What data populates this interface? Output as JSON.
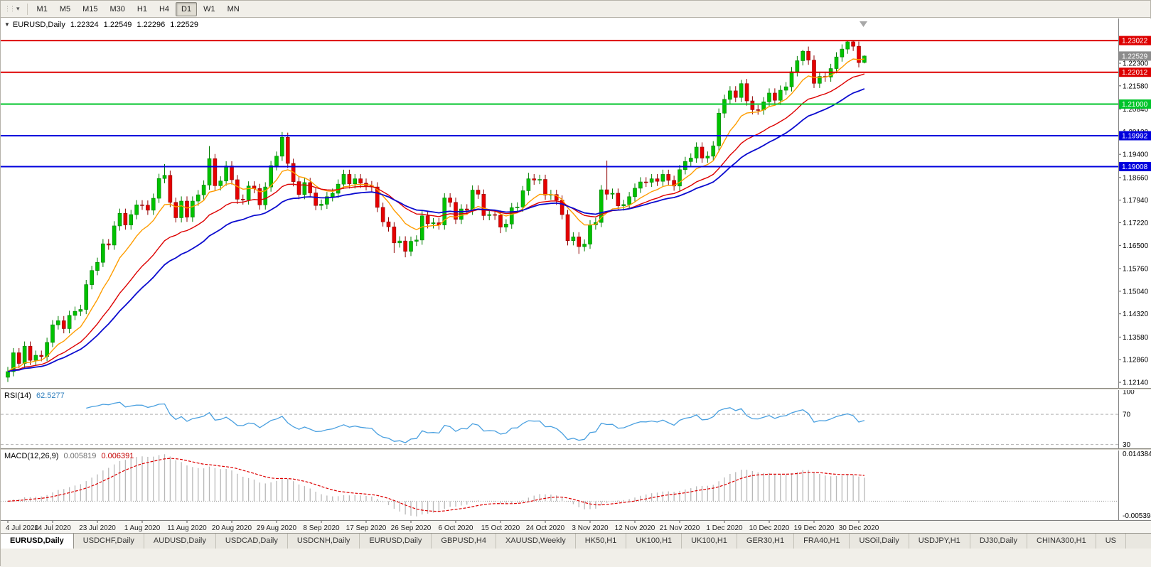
{
  "icons": {
    "toolbar_grip": "⋮⋮",
    "toolbar_dropdown": "▾",
    "collapse_arrow": "▼"
  },
  "toolbar": {
    "timeframes": [
      "M1",
      "M5",
      "M15",
      "M30",
      "H1",
      "H4",
      "D1",
      "W1",
      "MN"
    ],
    "active_timeframe": "D1"
  },
  "header": {
    "symbol": "EURUSD,Daily",
    "open": "1.22324",
    "high": "1.22549",
    "low": "1.22296",
    "close": "1.22529"
  },
  "indicators": {
    "rsi_label": {
      "name": "RSI(14)",
      "value": "62.5277"
    },
    "macd_label": {
      "name": "MACD(12,26,9)",
      "v1": "0.005819",
      "v2": "0.006391"
    }
  },
  "window_tabs": [
    "EURUSD,Daily",
    "USDCHF,Daily",
    "AUDUSD,Daily",
    "USDCAD,Daily",
    "USDCNH,Daily",
    "EURUSD,Daily",
    "GBPUSD,H4",
    "XAUUSD,Weekly",
    "HK50,H1",
    "UK100,H1",
    "UK100,H1",
    "GER30,H1",
    "FRA40,H1",
    "USOil,Daily",
    "USDJPY,H1",
    "DJ30,Daily",
    "CHINA300,H1",
    "US"
  ],
  "active_tab_index": 0,
  "chart_data": {
    "type": "candlestick",
    "title": "EURUSD,Daily",
    "x_labels": [
      "4 Jul 2020",
      "14 Jul 2020",
      "23 Jul 2020",
      "1 Aug 2020",
      "11 Aug 2020",
      "20 Aug 2020",
      "29 Aug 2020",
      "8 Sep 2020",
      "17 Sep 2020",
      "26 Sep 2020",
      "6 Oct 2020",
      "15 Oct 2020",
      "24 Oct 2020",
      "3 Nov 2020",
      "12 Nov 2020",
      "21 Nov 2020",
      "1 Dec 2020",
      "10 Dec 2020",
      "19 Dec 2020",
      "30 Dec 2020"
    ],
    "bars_per_x_label": 8,
    "y_ticks": [
      "1.22300",
      "1.21580",
      "1.20840",
      "1.20120",
      "1.19400",
      "1.18660",
      "1.17940",
      "1.17220",
      "1.16500",
      "1.15760",
      "1.15040",
      "1.14320",
      "1.13580",
      "1.12860",
      "1.12140"
    ],
    "y_view": {
      "max": 1.2368,
      "min": 1.1196
    },
    "current_price": "1.22529",
    "up_color": "#00c200",
    "up_border": "#007d00",
    "down_color": "#e60000",
    "down_border": "#8f0000",
    "current_price_box": "#8c8c8c",
    "hlines": [
      {
        "price": 1.23022,
        "label": "1.23022",
        "color": "#dd0000"
      },
      {
        "price": 1.22012,
        "label": "1.22012",
        "color": "#dd0000"
      },
      {
        "price": 1.21,
        "label": "1.21000",
        "color": "#00c42a"
      },
      {
        "price": 1.19992,
        "label": "1.19992",
        "color": "#0000dd"
      },
      {
        "price": 1.19008,
        "label": "1.19008",
        "color": "#0000dd"
      }
    ],
    "overlays": [
      {
        "name": "ma-fast",
        "type": "ema",
        "period": 9,
        "color": "#ff9d00",
        "width": 1.4
      },
      {
        "name": "ma-medium",
        "type": "ema",
        "period": 20,
        "color": "#dd0000",
        "width": 1.4
      },
      {
        "name": "ma-slow",
        "type": "ema",
        "period": 30,
        "color": "#0b0bcf",
        "width": 1.8
      }
    ],
    "rsi": {
      "period": 14,
      "levels": [
        100,
        70,
        30
      ],
      "axis_labels": [
        "100",
        "70",
        "30"
      ],
      "color": "#4aa0e0",
      "scale_max": 102,
      "scale_min": 25
    },
    "macd": {
      "fast": 12,
      "slow": 26,
      "signal": 9,
      "hist_color": "#b8b8b8",
      "signal_color": "#dd0000",
      "axis_top_label": "0.014384",
      "axis_bottom_label": "-0.005394"
    },
    "ohlc": [
      [
        1.123,
        1.1263,
        1.1215,
        1.1248
      ],
      [
        1.1248,
        1.1323,
        1.1233,
        1.1308
      ],
      [
        1.1308,
        1.1323,
        1.1259,
        1.1274
      ],
      [
        1.1274,
        1.1344,
        1.1259,
        1.1329
      ],
      [
        1.1329,
        1.1344,
        1.1269,
        1.1284
      ],
      [
        1.1284,
        1.1315,
        1.1269,
        1.13
      ],
      [
        1.13,
        1.1315,
        1.1281,
        1.1296
      ],
      [
        1.1296,
        1.1356,
        1.1281,
        1.1341
      ],
      [
        1.1341,
        1.1412,
        1.1326,
        1.1397
      ],
      [
        1.1397,
        1.1425,
        1.1382,
        1.141
      ],
      [
        1.141,
        1.1425,
        1.137,
        1.1385
      ],
      [
        1.1385,
        1.1442,
        1.137,
        1.1427
      ],
      [
        1.1427,
        1.1455,
        1.1412,
        1.144
      ],
      [
        1.144,
        1.1461,
        1.1425,
        1.1446
      ],
      [
        1.1446,
        1.154,
        1.1431,
        1.1525
      ],
      [
        1.1525,
        1.1585,
        1.151,
        1.157
      ],
      [
        1.157,
        1.1611,
        1.1555,
        1.1596
      ],
      [
        1.1596,
        1.167,
        1.1581,
        1.1655
      ],
      [
        1.1655,
        1.167,
        1.1636,
        1.1651
      ],
      [
        1.1651,
        1.1727,
        1.1636,
        1.1712
      ],
      [
        1.1712,
        1.1767,
        1.1697,
        1.1752
      ],
      [
        1.1752,
        1.1767,
        1.17,
        1.1715
      ],
      [
        1.1715,
        1.1763,
        1.17,
        1.1748
      ],
      [
        1.1748,
        1.1794,
        1.1733,
        1.1779
      ],
      [
        1.1779,
        1.1794,
        1.1763,
        1.1778
      ],
      [
        1.1778,
        1.1793,
        1.1747,
        1.1762
      ],
      [
        1.1762,
        1.1815,
        1.1747,
        1.18
      ],
      [
        1.18,
        1.1878,
        1.1785,
        1.1863
      ],
      [
        1.1863,
        1.1909,
        1.1848,
        1.1873
      ],
      [
        1.1873,
        1.1888,
        1.1772,
        1.1787
      ],
      [
        1.1787,
        1.1802,
        1.1723,
        1.1738
      ],
      [
        1.1738,
        1.1806,
        1.1723,
        1.1791
      ],
      [
        1.1791,
        1.1806,
        1.1725,
        1.174
      ],
      [
        1.174,
        1.1806,
        1.1725,
        1.1791
      ],
      [
        1.1791,
        1.1826,
        1.1776,
        1.1811
      ],
      [
        1.1811,
        1.1857,
        1.1796,
        1.1842
      ],
      [
        1.1842,
        1.1966,
        1.1827,
        1.1926
      ],
      [
        1.1926,
        1.1941,
        1.1825,
        1.184
      ],
      [
        1.184,
        1.187,
        1.1825,
        1.1855
      ],
      [
        1.1855,
        1.1918,
        1.184,
        1.1903
      ],
      [
        1.1903,
        1.1918,
        1.1844,
        1.1859
      ],
      [
        1.1859,
        1.1874,
        1.1782,
        1.1797
      ],
      [
        1.1797,
        1.1812,
        1.178,
        1.1795
      ],
      [
        1.1795,
        1.1854,
        1.178,
        1.1839
      ],
      [
        1.1839,
        1.1854,
        1.1816,
        1.1831
      ],
      [
        1.1831,
        1.1846,
        1.1764,
        1.1779
      ],
      [
        1.1779,
        1.1851,
        1.1764,
        1.1836
      ],
      [
        1.1836,
        1.1919,
        1.1821,
        1.1904
      ],
      [
        1.1904,
        1.1949,
        1.1889,
        1.1934
      ],
      [
        1.1934,
        1.2011,
        1.1919,
        1.1994
      ],
      [
        1.1994,
        1.2009,
        1.1896,
        1.1911
      ],
      [
        1.1911,
        1.1926,
        1.1838,
        1.1853
      ],
      [
        1.1853,
        1.1868,
        1.1797,
        1.1812
      ],
      [
        1.1812,
        1.1865,
        1.1797,
        1.185
      ],
      [
        1.185,
        1.1865,
        1.1802,
        1.1817
      ],
      [
        1.1817,
        1.1832,
        1.1762,
        1.1777
      ],
      [
        1.1777,
        1.1796,
        1.1762,
        1.1781
      ],
      [
        1.1781,
        1.182,
        1.1766,
        1.1805
      ],
      [
        1.1805,
        1.1831,
        1.179,
        1.1816
      ],
      [
        1.1816,
        1.186,
        1.1801,
        1.1845
      ],
      [
        1.1845,
        1.1891,
        1.183,
        1.1876
      ],
      [
        1.1876,
        1.1891,
        1.1831,
        1.1846
      ],
      [
        1.1846,
        1.1877,
        1.1831,
        1.1862
      ],
      [
        1.1862,
        1.1877,
        1.1833,
        1.1848
      ],
      [
        1.1848,
        1.1863,
        1.1825,
        1.184
      ],
      [
        1.184,
        1.1855,
        1.1821,
        1.1836
      ],
      [
        1.1836,
        1.1851,
        1.1756,
        1.1771
      ],
      [
        1.1771,
        1.1786,
        1.171,
        1.1725
      ],
      [
        1.1725,
        1.174,
        1.1694,
        1.1709
      ],
      [
        1.1709,
        1.1724,
        1.1626,
        1.1658
      ],
      [
        1.1658,
        1.1679,
        1.1643,
        1.1664
      ],
      [
        1.1664,
        1.1679,
        1.1612,
        1.1631
      ],
      [
        1.1631,
        1.1678,
        1.1616,
        1.1663
      ],
      [
        1.1663,
        1.1682,
        1.1648,
        1.1667
      ],
      [
        1.1667,
        1.1759,
        1.1652,
        1.1744
      ],
      [
        1.1744,
        1.1759,
        1.1704,
        1.1719
      ],
      [
        1.1719,
        1.1737,
        1.1704,
        1.1722
      ],
      [
        1.1722,
        1.1737,
        1.17,
        1.1715
      ],
      [
        1.1715,
        1.1816,
        1.17,
        1.1801
      ],
      [
        1.1801,
        1.1816,
        1.1772,
        1.1787
      ],
      [
        1.1787,
        1.1802,
        1.1718,
        1.1733
      ],
      [
        1.1733,
        1.1781,
        1.1718,
        1.1766
      ],
      [
        1.1766,
        1.1781,
        1.1747,
        1.1762
      ],
      [
        1.1762,
        1.1841,
        1.1747,
        1.1826
      ],
      [
        1.1826,
        1.1841,
        1.1798,
        1.1813
      ],
      [
        1.1813,
        1.1828,
        1.173,
        1.1745
      ],
      [
        1.1745,
        1.1763,
        1.173,
        1.1748
      ],
      [
        1.1748,
        1.1763,
        1.1731,
        1.1746
      ],
      [
        1.1746,
        1.1761,
        1.1689,
        1.1708
      ],
      [
        1.1708,
        1.1733,
        1.1693,
        1.1718
      ],
      [
        1.1718,
        1.1785,
        1.1703,
        1.177
      ],
      [
        1.177,
        1.1787,
        1.1757,
        1.1772
      ],
      [
        1.1772,
        1.1839,
        1.1757,
        1.1824
      ],
      [
        1.1824,
        1.1881,
        1.1809,
        1.1862
      ],
      [
        1.1862,
        1.1877,
        1.1843,
        1.1858
      ],
      [
        1.1858,
        1.1875,
        1.1845,
        1.186
      ],
      [
        1.186,
        1.1875,
        1.1795,
        1.181
      ],
      [
        1.181,
        1.1827,
        1.1795,
        1.1812
      ],
      [
        1.1812,
        1.1827,
        1.1779,
        1.1794
      ],
      [
        1.1794,
        1.1809,
        1.1733,
        1.1748
      ],
      [
        1.1748,
        1.1763,
        1.165,
        1.1665
      ],
      [
        1.1665,
        1.1692,
        1.165,
        1.1677
      ],
      [
        1.1677,
        1.1692,
        1.1623,
        1.1646
      ],
      [
        1.1646,
        1.1669,
        1.1631,
        1.1654
      ],
      [
        1.1654,
        1.173,
        1.1639,
        1.1715
      ],
      [
        1.1715,
        1.1738,
        1.17,
        1.1723
      ],
      [
        1.1723,
        1.1842,
        1.1708,
        1.1827
      ],
      [
        1.1827,
        1.192,
        1.1795,
        1.1813
      ],
      [
        1.1813,
        1.1831,
        1.1798,
        1.1816
      ],
      [
        1.1816,
        1.1831,
        1.1761,
        1.1776
      ],
      [
        1.1776,
        1.1795,
        1.1761,
        1.178
      ],
      [
        1.178,
        1.182,
        1.1765,
        1.1805
      ],
      [
        1.1805,
        1.1847,
        1.179,
        1.1832
      ],
      [
        1.1832,
        1.1867,
        1.1817,
        1.1852
      ],
      [
        1.1852,
        1.1867,
        1.1836,
        1.1851
      ],
      [
        1.1851,
        1.1877,
        1.1836,
        1.1862
      ],
      [
        1.1862,
        1.1877,
        1.1839,
        1.1854
      ],
      [
        1.1854,
        1.1891,
        1.1839,
        1.1876
      ],
      [
        1.1876,
        1.1891,
        1.1842,
        1.1857
      ],
      [
        1.1857,
        1.1872,
        1.1824,
        1.1839
      ],
      [
        1.1839,
        1.1906,
        1.1824,
        1.1891
      ],
      [
        1.1891,
        1.1932,
        1.1876,
        1.1917
      ],
      [
        1.1917,
        1.1943,
        1.1902,
        1.1928
      ],
      [
        1.1928,
        1.1978,
        1.1913,
        1.1963
      ],
      [
        1.1963,
        1.1978,
        1.1913,
        1.1928
      ],
      [
        1.1928,
        1.1949,
        1.1913,
        1.1934
      ],
      [
        1.1934,
        1.1982,
        1.1919,
        1.1967
      ],
      [
        1.1967,
        1.2086,
        1.1952,
        1.2071
      ],
      [
        1.2071,
        1.213,
        1.2056,
        1.2115
      ],
      [
        1.2115,
        1.2157,
        1.21,
        1.2142
      ],
      [
        1.2142,
        1.2157,
        1.2106,
        1.2121
      ],
      [
        1.2121,
        1.2177,
        1.2106,
        1.2165
      ],
      [
        1.2165,
        1.218,
        1.2095,
        1.211
      ],
      [
        1.211,
        1.2125,
        1.2067,
        1.2082
      ],
      [
        1.2082,
        1.2097,
        1.2066,
        1.2081
      ],
      [
        1.2081,
        1.2122,
        1.2066,
        1.2107
      ],
      [
        1.2107,
        1.215,
        1.2092,
        1.2135
      ],
      [
        1.2135,
        1.215,
        1.2097,
        1.2112
      ],
      [
        1.2112,
        1.2159,
        1.2097,
        1.2144
      ],
      [
        1.2144,
        1.217,
        1.2129,
        1.2155
      ],
      [
        1.2155,
        1.2218,
        1.214,
        1.2203
      ],
      [
        1.2203,
        1.2253,
        1.2188,
        1.2238
      ],
      [
        1.2238,
        1.2273,
        1.2223,
        1.2268
      ],
      [
        1.2268,
        1.2283,
        1.2225,
        1.224
      ],
      [
        1.224,
        1.2255,
        1.2151,
        1.2166
      ],
      [
        1.2166,
        1.2203,
        1.2151,
        1.2188
      ],
      [
        1.2188,
        1.2203,
        1.2171,
        1.2186
      ],
      [
        1.2186,
        1.2228,
        1.2171,
        1.2213
      ],
      [
        1.2213,
        1.2265,
        1.2198,
        1.225
      ],
      [
        1.225,
        1.229,
        1.2235,
        1.2275
      ],
      [
        1.2275,
        1.2303,
        1.226,
        1.2298
      ],
      [
        1.2298,
        1.2302,
        1.2269,
        1.2284
      ],
      [
        1.2284,
        1.2299,
        1.2217,
        1.2232
      ],
      [
        1.22324,
        1.22549,
        1.22296,
        1.22529
      ]
    ]
  }
}
